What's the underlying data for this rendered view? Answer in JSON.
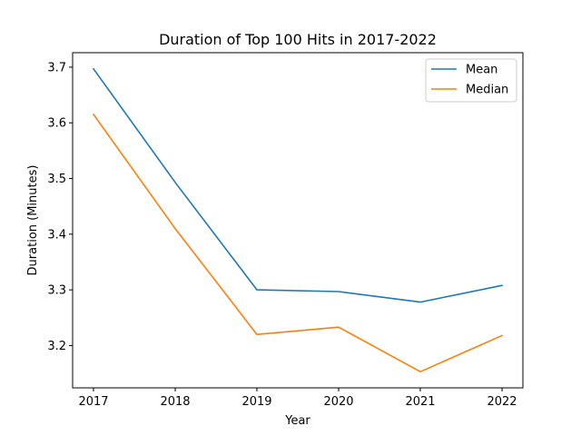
{
  "chart_data": {
    "type": "line",
    "title": "Duration of Top 100 Hits in 2017-2022",
    "xlabel": "Year",
    "ylabel": "Duration (Minutes)",
    "categories": [
      "2017",
      "2018",
      "2019",
      "2020",
      "2021",
      "2022"
    ],
    "series": [
      {
        "name": "Mean",
        "color": "#1f77b4",
        "values": [
          3.697,
          3.493,
          3.3,
          3.297,
          3.278,
          3.308
        ]
      },
      {
        "name": "Median",
        "color": "#ff7f0e",
        "values": [
          3.615,
          3.41,
          3.22,
          3.233,
          3.153,
          3.218
        ]
      }
    ],
    "ylim": [
      3.124,
      3.726
    ],
    "yticks": [
      "3.2",
      "3.3",
      "3.4",
      "3.5",
      "3.6",
      "3.7"
    ],
    "grid": false,
    "legend_position": "top-right"
  }
}
